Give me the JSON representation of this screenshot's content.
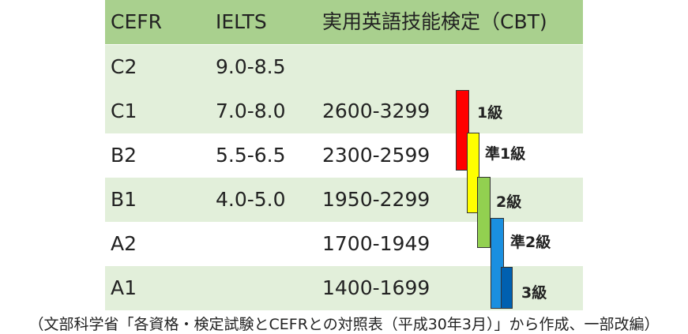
{
  "table": {
    "header": [
      "CEFR",
      "IELTS",
      "実用英語技能検定（CBT)"
    ],
    "rows": [
      [
        "C2",
        "9.0-8.5",
        ""
      ],
      [
        "C1",
        "7.0-8.0",
        "2600-3299"
      ],
      [
        "B2",
        "5.5-6.5",
        "2300-2599"
      ],
      [
        "B1",
        "4.0-5.0",
        "1950-2299"
      ],
      [
        "A2",
        "",
        "1700-1949"
      ],
      [
        "A1",
        "",
        "1400-1699"
      ]
    ]
  },
  "grades": [
    "1級",
    "準1級",
    "2級",
    "準2級",
    "3級"
  ],
  "note": "（文部科学省「各資格・検定試験とCEFRとの対照表（平成30年3月）」から作成、一部改編）"
}
